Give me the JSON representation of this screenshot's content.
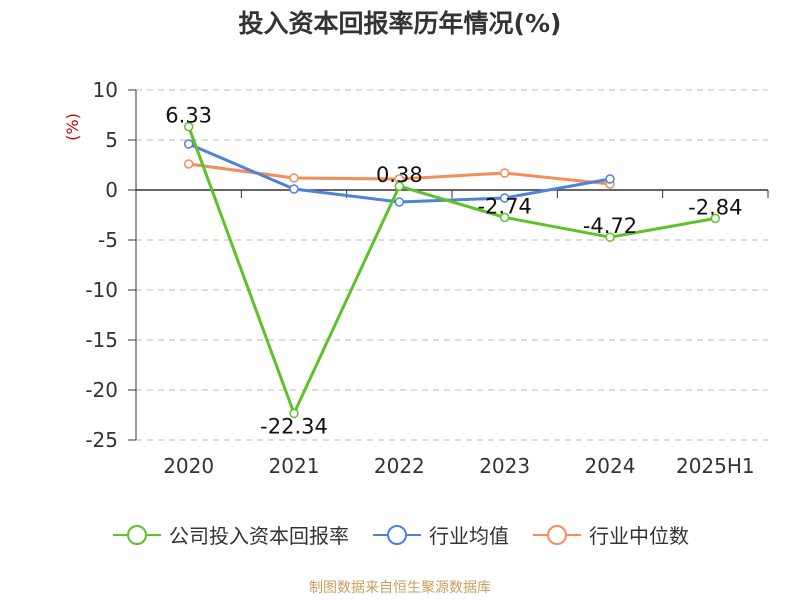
{
  "chart_data": {
    "type": "line",
    "title": "投入资本回报率历年情况(%)",
    "ylabel": "(%)",
    "xlabel": "",
    "categories": [
      "2020",
      "2021",
      "2022",
      "2023",
      "2024",
      "2025H1"
    ],
    "ylim": [
      -25,
      10
    ],
    "yticks": [
      10,
      5,
      0,
      -5,
      -10,
      -15,
      -20,
      -25
    ],
    "grid": true,
    "legend_position": "bottom",
    "series": [
      {
        "name": "公司投入资本回报率",
        "color": "#5cc229",
        "values": [
          6.33,
          -22.34,
          0.38,
          -2.74,
          -4.72,
          -2.84
        ],
        "labels": [
          "6.33",
          "-22.34",
          "0.38",
          "-2.74",
          "-4.72",
          "-2.84"
        ]
      },
      {
        "name": "行业均值",
        "color": "#4f81db",
        "values": [
          4.6,
          0.1,
          -1.2,
          -0.8,
          1.1,
          null
        ]
      },
      {
        "name": "行业中位数",
        "color": "#f58d57",
        "values": [
          2.6,
          1.2,
          1.1,
          1.7,
          0.6,
          null
        ]
      }
    ],
    "source": "制图数据来自恒生聚源数据库"
  }
}
